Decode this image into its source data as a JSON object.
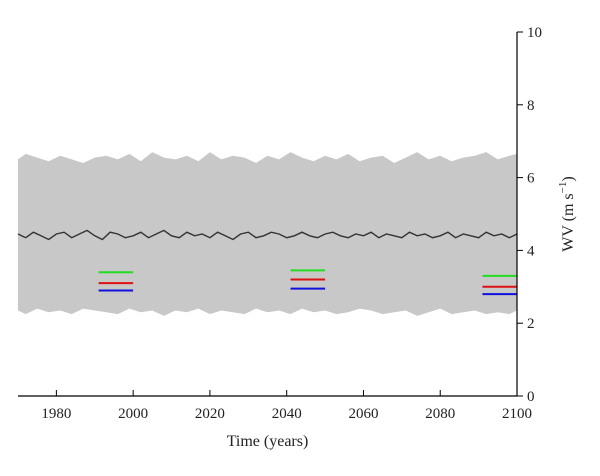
{
  "chart_data": {
    "type": "area",
    "title": "",
    "xlabel": "Time (years)",
    "ylabel": "WV (m s⁻¹)",
    "ylabel_main": "WV (m s",
    "ylabel_sup": "−1",
    "ylabel_close": ")",
    "xlim": [
      1970,
      2100
    ],
    "ylim": [
      0,
      10
    ],
    "xticks": [
      1980,
      2000,
      2020,
      2040,
      2060,
      2080,
      2100
    ],
    "yticks": [
      0,
      2,
      4,
      6,
      8,
      10
    ],
    "y_axis_side": "right",
    "grid": false,
    "legend": "none",
    "band": {
      "color": "#c8c8c8",
      "x": [
        1970,
        1972,
        1975,
        1978,
        1981,
        1984,
        1987,
        1990,
        1993,
        1996,
        1999,
        2002,
        2005,
        2008,
        2011,
        2014,
        2017,
        2020,
        2023,
        2026,
        2029,
        2032,
        2035,
        2038,
        2041,
        2044,
        2047,
        2050,
        2053,
        2056,
        2059,
        2062,
        2065,
        2068,
        2071,
        2074,
        2077,
        2080,
        2083,
        2086,
        2089,
        2092,
        2095,
        2098,
        2100
      ],
      "upper": [
        6.5,
        6.65,
        6.55,
        6.45,
        6.6,
        6.5,
        6.4,
        6.55,
        6.6,
        6.5,
        6.65,
        6.45,
        6.7,
        6.55,
        6.5,
        6.6,
        6.45,
        6.7,
        6.5,
        6.6,
        6.55,
        6.4,
        6.6,
        6.5,
        6.7,
        6.55,
        6.45,
        6.6,
        6.5,
        6.65,
        6.45,
        6.55,
        6.6,
        6.4,
        6.55,
        6.7,
        6.5,
        6.6,
        6.45,
        6.55,
        6.6,
        6.7,
        6.5,
        6.6,
        6.65
      ],
      "lower": [
        2.35,
        2.25,
        2.4,
        2.3,
        2.35,
        2.25,
        2.4,
        2.35,
        2.3,
        2.25,
        2.4,
        2.3,
        2.35,
        2.2,
        2.35,
        2.3,
        2.4,
        2.25,
        2.35,
        2.3,
        2.25,
        2.4,
        2.3,
        2.35,
        2.25,
        2.4,
        2.3,
        2.35,
        2.25,
        2.3,
        2.4,
        2.35,
        2.25,
        2.3,
        2.35,
        2.2,
        2.3,
        2.4,
        2.25,
        2.3,
        2.35,
        2.25,
        2.3,
        2.25,
        2.35
      ]
    },
    "series": [
      {
        "color": "#333333",
        "x": [
          1970,
          1972,
          1974,
          1976,
          1978,
          1980,
          1982,
          1984,
          1986,
          1988,
          1990,
          1992,
          1994,
          1996,
          1998,
          2000,
          2002,
          2004,
          2006,
          2008,
          2010,
          2012,
          2014,
          2016,
          2018,
          2020,
          2022,
          2024,
          2026,
          2028,
          2030,
          2032,
          2034,
          2036,
          2038,
          2040,
          2042,
          2044,
          2046,
          2048,
          2050,
          2052,
          2054,
          2056,
          2058,
          2060,
          2062,
          2064,
          2066,
          2068,
          2070,
          2072,
          2074,
          2076,
          2078,
          2080,
          2082,
          2084,
          2086,
          2088,
          2090,
          2092,
          2094,
          2096,
          2098,
          2100
        ],
        "values": [
          4.45,
          4.35,
          4.5,
          4.4,
          4.3,
          4.45,
          4.5,
          4.35,
          4.45,
          4.55,
          4.4,
          4.3,
          4.5,
          4.45,
          4.35,
          4.4,
          4.5,
          4.35,
          4.45,
          4.55,
          4.4,
          4.35,
          4.5,
          4.4,
          4.45,
          4.35,
          4.5,
          4.4,
          4.3,
          4.45,
          4.5,
          4.35,
          4.4,
          4.5,
          4.45,
          4.35,
          4.4,
          4.5,
          4.4,
          4.35,
          4.45,
          4.5,
          4.4,
          4.35,
          4.45,
          4.4,
          4.5,
          4.35,
          4.45,
          4.4,
          4.35,
          4.5,
          4.4,
          4.45,
          4.35,
          4.4,
          4.5,
          4.35,
          4.45,
          4.4,
          4.35,
          4.5,
          4.4,
          4.45,
          4.35,
          4.45
        ]
      }
    ],
    "reference_lines": [
      {
        "color": "#22dd22",
        "x": [
          1991,
          2000
        ],
        "y": 3.4
      },
      {
        "color": "#dd1111",
        "x": [
          1991,
          2000
        ],
        "y": 3.1
      },
      {
        "color": "#1111dd",
        "x": [
          1991,
          2000
        ],
        "y": 2.9
      },
      {
        "color": "#22dd22",
        "x": [
          2041,
          2050
        ],
        "y": 3.45
      },
      {
        "color": "#dd1111",
        "x": [
          2041,
          2050
        ],
        "y": 3.2
      },
      {
        "color": "#1111dd",
        "x": [
          2041,
          2050
        ],
        "y": 2.95
      },
      {
        "color": "#22dd22",
        "x": [
          2091,
          2100
        ],
        "y": 3.3
      },
      {
        "color": "#dd1111",
        "x": [
          2091,
          2100
        ],
        "y": 3.0
      },
      {
        "color": "#1111dd",
        "x": [
          2091,
          2100
        ],
        "y": 2.8
      }
    ]
  }
}
